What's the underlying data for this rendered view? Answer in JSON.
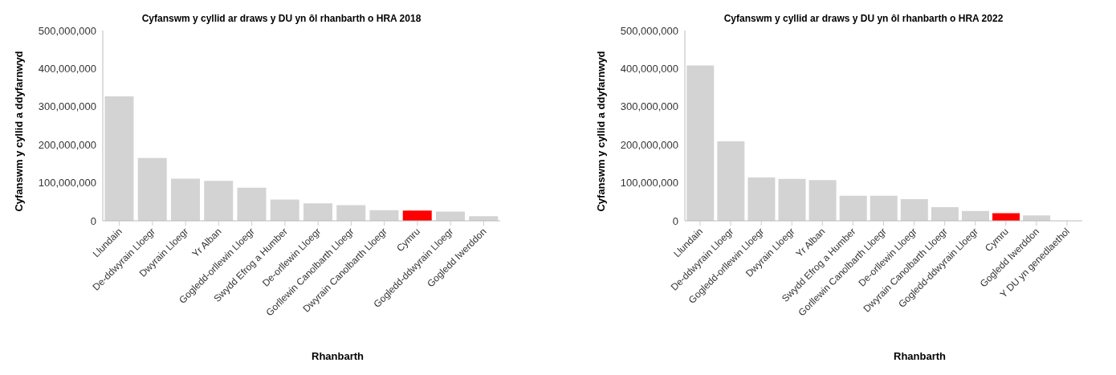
{
  "chart_data": [
    {
      "type": "bar",
      "title": "Cyfanswm y cyllid ar draws y DU yn ôl rhanbarth o HRA 2018",
      "xlabel": "Rhanbarth",
      "ylabel": "Cyfanswm y cyllid a ddyfarnwyd",
      "categories": [
        "Llundain",
        "De-ddwyrain Lloegr",
        "Dwyrain Lloegr",
        "Yr Alban",
        "Gogledd-orllewin Lloegr",
        "Swydd Efrog a Humber",
        "De-orllewin Lloegr",
        "Gorllewin Canolbarth Lloegr",
        "Dwyrain Canolbarth Lloegr",
        "Cymru",
        "Gogledd-ddwyrain Lloegr",
        "Gogledd Iwerddon"
      ],
      "values": [
        327000000,
        165000000,
        111000000,
        105000000,
        87000000,
        56000000,
        46000000,
        41000000,
        28000000,
        27000000,
        24000000,
        12000000
      ],
      "colors": [
        "#d3d3d3",
        "#d3d3d3",
        "#d3d3d3",
        "#d3d3d3",
        "#d3d3d3",
        "#d3d3d3",
        "#d3d3d3",
        "#d3d3d3",
        "#d3d3d3",
        "#ff0000",
        "#d3d3d3",
        "#d3d3d3"
      ],
      "ylim": [
        0,
        500000000
      ],
      "yticks": [
        {
          "value": 0,
          "label": "0"
        },
        {
          "value": 100000000,
          "label": "100,000,000"
        },
        {
          "value": 200000000,
          "label": "200,000,000"
        },
        {
          "value": 300000000,
          "label": "300,000,000"
        },
        {
          "value": 400000000,
          "label": "400,000,000"
        },
        {
          "value": 500000000,
          "label": "500,000,000"
        }
      ],
      "grid": false,
      "legend": false
    },
    {
      "type": "bar",
      "title": "Cyfanswm y cyllid ar draws y DU yn ôl rhanbarth o HRA 2022",
      "xlabel": "Rhanbarth",
      "ylabel": "Cyfanswm y cyllid a ddyfarnwyd",
      "categories": [
        "Llundain",
        "De-ddwyrain Lloegr",
        "Gogledd-orllewin Lloegr",
        "Dwyrain Lloegr",
        "Yr Alban",
        "Swydd Efrog a Humber",
        "Gorllewin Canolbarth Lloegr",
        "De-orllewin Lloegr",
        "Dwyrain Canolbarth Lloegr",
        "Gogledd-ddwyrain Lloegr",
        "Cymru",
        "Gogledd Iwerddon",
        "Y DU yn genedlaethol"
      ],
      "values": [
        408000000,
        209000000,
        114000000,
        110000000,
        107000000,
        66000000,
        66000000,
        57000000,
        36000000,
        26000000,
        20000000,
        14000000,
        null
      ],
      "colors": [
        "#d3d3d3",
        "#d3d3d3",
        "#d3d3d3",
        "#d3d3d3",
        "#d3d3d3",
        "#d3d3d3",
        "#d3d3d3",
        "#d3d3d3",
        "#d3d3d3",
        "#d3d3d3",
        "#ff0000",
        "#d3d3d3",
        "#d3d3d3"
      ],
      "ylim": [
        0,
        500000000
      ],
      "yticks": [
        {
          "value": 0,
          "label": "0"
        },
        {
          "value": 100000000,
          "label": "100,000,000"
        },
        {
          "value": 200000000,
          "label": "200,000,000"
        },
        {
          "value": 300000000,
          "label": "300,000,000"
        },
        {
          "value": 400000000,
          "label": "400,000,000"
        },
        {
          "value": 500000000,
          "label": "500,000,000"
        }
      ],
      "grid": false,
      "legend": false
    }
  ]
}
